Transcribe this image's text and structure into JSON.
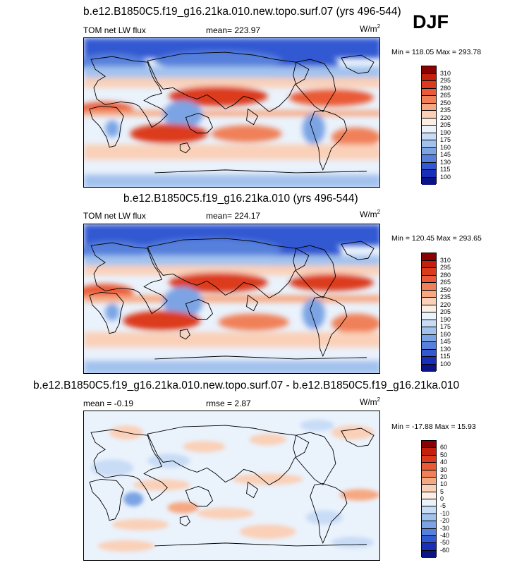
{
  "season": "DJF",
  "panels": [
    {
      "title": "b.e12.B1850C5.f19_g16.21ka.010.new.topo.surf.07 (yrs 496-544)",
      "left_label": "TOM net LW flux",
      "mid_label": "mean= 223.97",
      "units": "W/m",
      "units_sup": "2",
      "minmax": "Min = 118.05 Max = 293.78",
      "colorbar": {
        "colors": [
          "#8b0000",
          "#c4200c",
          "#dc3a1c",
          "#ea5a36",
          "#f08058",
          "#f6a882",
          "#fad0b8",
          "#fdeee4",
          "#eaf2fc",
          "#c8dcf6",
          "#a2c2ee",
          "#7ca4e4",
          "#5680dc",
          "#3258d2",
          "#1830b8",
          "#0a1488"
        ],
        "labels": [
          "310",
          "295",
          "280",
          "265",
          "250",
          "235",
          "220",
          "205",
          "190",
          "175",
          "160",
          "145",
          "130",
          "115",
          "100"
        ]
      }
    },
    {
      "title": "b.e12.B1850C5.f19_g16.21ka.010 (yrs 496-544)",
      "left_label": "TOM net LW flux",
      "mid_label": "mean= 224.17",
      "units": "W/m",
      "units_sup": "2",
      "minmax": "Min = 120.45 Max = 293.65",
      "colorbar": {
        "colors": [
          "#8b0000",
          "#c4200c",
          "#dc3a1c",
          "#ea5a36",
          "#f08058",
          "#f6a882",
          "#fad0b8",
          "#fdeee4",
          "#eaf2fc",
          "#c8dcf6",
          "#a2c2ee",
          "#7ca4e4",
          "#5680dc",
          "#3258d2",
          "#1830b8",
          "#0a1488"
        ],
        "labels": [
          "310",
          "295",
          "280",
          "265",
          "250",
          "235",
          "220",
          "205",
          "190",
          "175",
          "160",
          "145",
          "130",
          "115",
          "100"
        ]
      }
    },
    {
      "title": "b.e12.B1850C5.f19_g16.21ka.010.new.topo.surf.07 - b.e12.B1850C5.f19_g16.21ka.010",
      "left_label": "mean =  -0.19",
      "mid_label": "rmse =   2.87",
      "units": "W/m",
      "units_sup": "2",
      "minmax": "Min = -17.88 Max =  15.93",
      "colorbar": {
        "colors": [
          "#8b0000",
          "#c4200c",
          "#dc3a1c",
          "#ea5a36",
          "#f08058",
          "#f6a882",
          "#fad0b8",
          "#fdeee4",
          "#eaf2fc",
          "#c8dcf6",
          "#a2c2ee",
          "#7ca4e4",
          "#5680dc",
          "#3258d2",
          "#1830b8",
          "#0a1488"
        ],
        "labels": [
          "60",
          "50",
          "40",
          "30",
          "20",
          "10",
          "5",
          "0",
          "-5",
          "-10",
          "-20",
          "-30",
          "-40",
          "-50",
          "-60"
        ]
      }
    }
  ]
}
